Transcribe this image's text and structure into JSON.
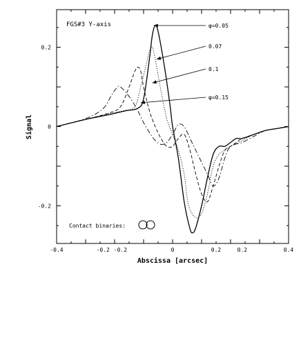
{
  "chart_data": {
    "type": "line",
    "title": "FGS#3 Y-axis",
    "xlabel": "Abscissa [arcsec]",
    "ylabel": "Signal",
    "xlim": [
      -0.4,
      0.4
    ],
    "ylim": [
      -0.295,
      0.295
    ],
    "bottom_tick_labels": [
      {
        "value": -0.4,
        "label": "-0.4"
      },
      {
        "value": -0.24,
        "label": "-0.2"
      },
      {
        "value": -0.18,
        "label": "-0.2"
      },
      {
        "value": 0.0,
        "label": "0"
      },
      {
        "value": 0.15,
        "label": "0.2"
      },
      {
        "value": 0.24,
        "label": "0.2"
      },
      {
        "value": 0.4,
        "label": "0.4"
      }
    ],
    "left_tick_labels": [
      {
        "value": 0.2,
        "label": "0.2"
      },
      {
        "value": 0.0,
        "label": "0"
      },
      {
        "value": -0.2,
        "label": "-0.2"
      }
    ],
    "inset_label": "Contact binaries:",
    "annotations": [
      {
        "text": "φ=0.05",
        "target": [
          -0.065,
          0.255
        ]
      },
      {
        "text": "0.07",
        "target": [
          -0.055,
          0.17
        ]
      },
      {
        "text": "0.1",
        "target": [
          -0.07,
          0.11
        ]
      },
      {
        "text": "φ=0.15",
        "target": [
          -0.11,
          0.06
        ]
      }
    ],
    "series": [
      {
        "style": "solid",
        "x": [
          -0.4,
          -0.3,
          -0.22,
          -0.16,
          -0.12,
          -0.1,
          -0.08,
          -0.07,
          -0.06,
          -0.05,
          -0.03,
          -0.01,
          0.0,
          0.02,
          0.04,
          0.06,
          0.07,
          0.08,
          0.1,
          0.12,
          0.14,
          0.16,
          0.18,
          0.2,
          0.22,
          0.24,
          0.28,
          0.32,
          0.36,
          0.4
        ],
        "y": [
          0.0,
          0.018,
          0.03,
          0.04,
          0.046,
          0.07,
          0.17,
          0.23,
          0.255,
          0.24,
          0.16,
          0.06,
          0.0,
          -0.08,
          -0.19,
          -0.258,
          -0.268,
          -0.255,
          -0.2,
          -0.13,
          -0.07,
          -0.05,
          -0.05,
          -0.04,
          -0.03,
          -0.03,
          -0.02,
          -0.01,
          -0.005,
          0.0
        ]
      },
      {
        "style": "dotted",
        "x": [
          -0.4,
          -0.3,
          -0.22,
          -0.17,
          -0.13,
          -0.11,
          -0.09,
          -0.08,
          -0.07,
          -0.06,
          -0.04,
          -0.02,
          0.0,
          0.02,
          0.04,
          0.05,
          0.06,
          0.08,
          0.1,
          0.12,
          0.14,
          0.16,
          0.18,
          0.2,
          0.24,
          0.28,
          0.32,
          0.36,
          0.4
        ],
        "y": [
          0.0,
          0.018,
          0.032,
          0.04,
          0.05,
          0.1,
          0.16,
          0.19,
          0.2,
          0.17,
          0.09,
          0.02,
          -0.02,
          -0.06,
          -0.12,
          -0.18,
          -0.21,
          -0.23,
          -0.22,
          -0.17,
          -0.1,
          -0.07,
          -0.06,
          -0.05,
          -0.035,
          -0.02,
          -0.01,
          -0.005,
          0.0
        ]
      },
      {
        "style": "dashed",
        "x": [
          -0.4,
          -0.3,
          -0.22,
          -0.18,
          -0.15,
          -0.13,
          -0.12,
          -0.11,
          -0.1,
          -0.08,
          -0.06,
          -0.04,
          -0.02,
          0.0,
          0.02,
          0.04,
          0.06,
          0.08,
          0.1,
          0.12,
          0.14,
          0.16,
          0.18,
          0.2,
          0.22,
          0.24,
          0.28,
          0.32,
          0.36,
          0.4
        ],
        "y": [
          0.0,
          0.018,
          0.034,
          0.05,
          0.1,
          0.14,
          0.15,
          0.14,
          0.1,
          0.04,
          0.0,
          -0.03,
          -0.05,
          -0.05,
          -0.03,
          -0.02,
          -0.06,
          -0.12,
          -0.17,
          -0.19,
          -0.15,
          -0.1,
          -0.06,
          -0.05,
          -0.04,
          -0.03,
          -0.02,
          -0.01,
          -0.005,
          0.0
        ]
      },
      {
        "style": "dashdot",
        "x": [
          -0.4,
          -0.3,
          -0.24,
          -0.21,
          -0.19,
          -0.18,
          -0.16,
          -0.14,
          -0.12,
          -0.1,
          -0.08,
          -0.06,
          -0.04,
          -0.02,
          0.0,
          0.02,
          0.04,
          0.06,
          0.08,
          0.1,
          0.12,
          0.14,
          0.16,
          0.18,
          0.2,
          0.24,
          0.28,
          0.32,
          0.36,
          0.4
        ],
        "y": [
          0.0,
          0.02,
          0.045,
          0.08,
          0.1,
          0.1,
          0.085,
          0.065,
          0.04,
          0.01,
          -0.015,
          -0.035,
          -0.045,
          -0.04,
          -0.02,
          0.005,
          0.0,
          -0.03,
          -0.06,
          -0.09,
          -0.12,
          -0.15,
          -0.13,
          -0.08,
          -0.05,
          -0.04,
          -0.025,
          -0.01,
          -0.005,
          0.0
        ]
      }
    ]
  }
}
